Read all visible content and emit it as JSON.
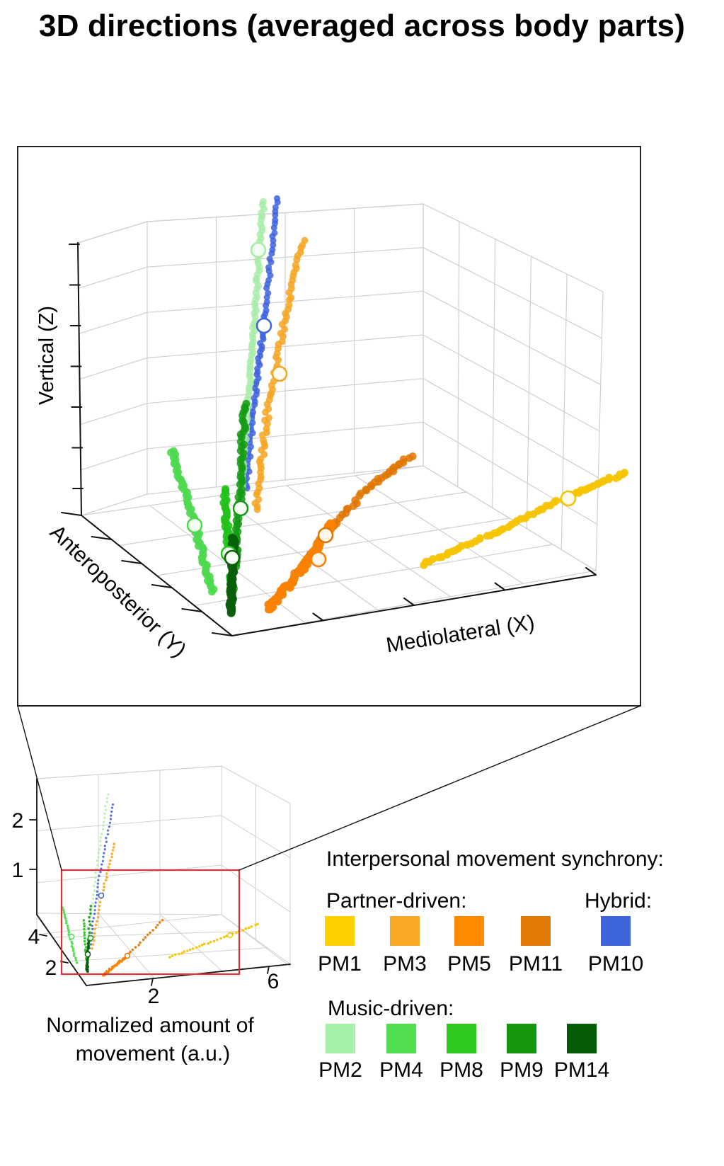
{
  "title": "3D directions (averaged across body parts)",
  "chart_data": [
    {
      "type": "scatter",
      "subtype": "3d-scatter",
      "axes": {
        "x_label": "Mediolateral (X)",
        "y_label": "Anteroposterior (Y)",
        "z_label": "Vertical (Z)"
      },
      "grid": true,
      "series": [
        {
          "name": "PM1",
          "color": "#F5C400"
        },
        {
          "name": "PM3",
          "color": "#F5A623"
        },
        {
          "name": "PM5",
          "color": "#FA8200"
        },
        {
          "name": "PM11",
          "color": "#E07500"
        },
        {
          "name": "PM10",
          "color": "#3E64DC"
        },
        {
          "name": "PM2",
          "color": "#A6ECA6"
        },
        {
          "name": "PM4",
          "color": "#4ED84E"
        },
        {
          "name": "PM8",
          "color": "#22C21B"
        },
        {
          "name": "PM9",
          "color": "#149A14"
        },
        {
          "name": "PM14",
          "color": "#0A5F0A"
        }
      ]
    },
    {
      "type": "scatter",
      "subtype": "3d-scatter-overview",
      "xlabel": "Normalized amount of movement (a.u.)",
      "ticks": {
        "x": [
          "2",
          "6"
        ],
        "y": [
          "2",
          "4"
        ],
        "z": [
          "1",
          "2"
        ]
      },
      "zoom_region_color": "#E0303A"
    }
  ],
  "legend": {
    "title": "Interpersonal movement synchrony:",
    "groups": [
      {
        "name": "Partner-driven:",
        "items": [
          {
            "label": "PM1",
            "color": "#FFD000"
          },
          {
            "label": "PM3",
            "color": "#FAA726"
          },
          {
            "label": "PM5",
            "color": "#FF8A00"
          },
          {
            "label": "PM11",
            "color": "#E07A05"
          }
        ]
      },
      {
        "name": "Hybrid:",
        "items": [
          {
            "label": "PM10",
            "color": "#3E64DC"
          }
        ]
      },
      {
        "name": "Music-driven:",
        "items": [
          {
            "label": "PM2",
            "color": "#A6F0A8"
          },
          {
            "label": "PM4",
            "color": "#50DE50"
          },
          {
            "label": "PM8",
            "color": "#2FC81C"
          },
          {
            "label": "PM9",
            "color": "#14960E"
          },
          {
            "label": "PM14",
            "color": "#065C06"
          }
        ]
      }
    ]
  }
}
